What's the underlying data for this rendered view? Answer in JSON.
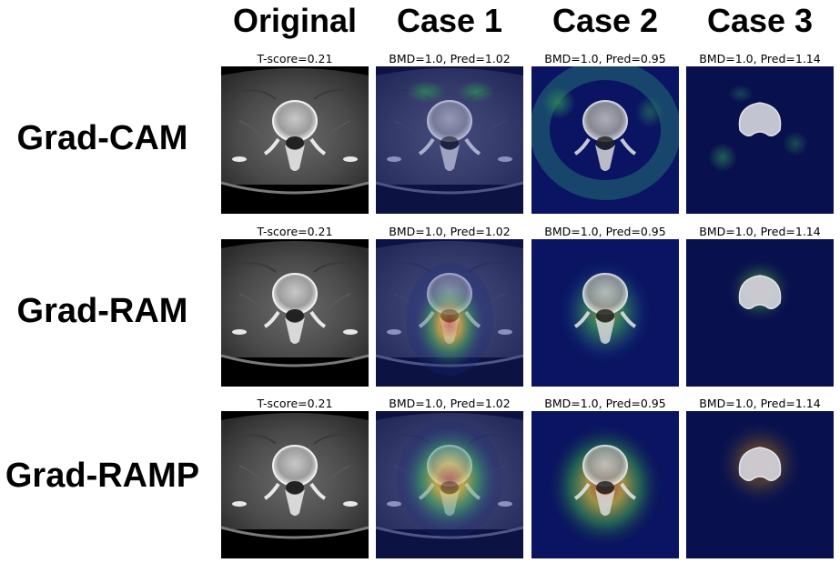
{
  "columns": [
    {
      "label": "Original"
    },
    {
      "label": "Case 1"
    },
    {
      "label": "Case 2"
    },
    {
      "label": "Case 3"
    }
  ],
  "rows": [
    {
      "label": "Grad-CAM",
      "captions": [
        "T-score=0.21",
        "BMD=1.0,  Pred=1.02",
        "BMD=1.0,  Pred=0.95",
        "BMD=1.0,  Pred=1.14"
      ]
    },
    {
      "label": "Grad-RAM",
      "captions": [
        "T-score=0.21",
        "BMD=1.0,  Pred=1.02",
        "BMD=1.0,  Pred=0.95",
        "BMD=1.0,  Pred=1.14"
      ]
    },
    {
      "label": "Grad-RAMP",
      "captions": [
        "T-score=0.21",
        "BMD=1.0,  Pred=1.02",
        "BMD=1.0,  Pred=0.95",
        "BMD=1.0,  Pred=1.14"
      ]
    }
  ],
  "colors": {
    "heatmap_low": "#0a1050",
    "heatmap_mid": "#2e8c5a",
    "heatmap_high": "#e8d040",
    "heatmap_peak": "#c83020"
  }
}
